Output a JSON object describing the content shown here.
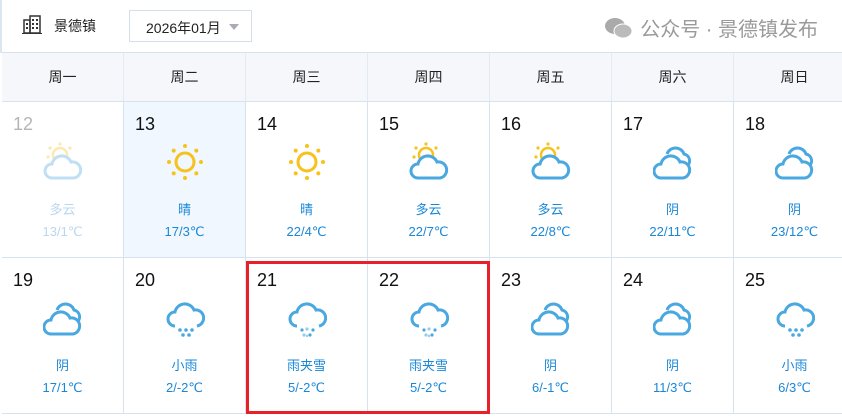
{
  "header": {
    "city": "景德镇",
    "month": "2026年01月"
  },
  "weekdays": [
    "周一",
    "周二",
    "周三",
    "周四",
    "周五",
    "周六",
    "周日"
  ],
  "rows": [
    [
      {
        "day": "12",
        "weather": "多云",
        "temp": "13/1℃",
        "icon": "partly-cloudy-icon",
        "past": true
      },
      {
        "day": "13",
        "weather": "晴",
        "temp": "17/3℃",
        "icon": "sun-icon",
        "today": true
      },
      {
        "day": "14",
        "weather": "晴",
        "temp": "22/4℃",
        "icon": "sun-icon"
      },
      {
        "day": "15",
        "weather": "多云",
        "temp": "22/7℃",
        "icon": "partly-cloudy-icon"
      },
      {
        "day": "16",
        "weather": "多云",
        "temp": "22/8℃",
        "icon": "partly-cloudy-icon"
      },
      {
        "day": "17",
        "weather": "阴",
        "temp": "22/11℃",
        "icon": "overcast-icon"
      },
      {
        "day": "18",
        "weather": "阴",
        "temp": "23/12℃",
        "icon": "overcast-icon"
      }
    ],
    [
      {
        "day": "19",
        "weather": "阴",
        "temp": "17/1℃",
        "icon": "overcast-icon"
      },
      {
        "day": "20",
        "weather": "小雨",
        "temp": "2/-2℃",
        "icon": "light-rain-icon"
      },
      {
        "day": "21",
        "weather": "雨夹雪",
        "temp": "5/-2℃",
        "icon": "sleet-icon"
      },
      {
        "day": "22",
        "weather": "雨夹雪",
        "temp": "5/-2℃",
        "icon": "sleet-icon"
      },
      {
        "day": "23",
        "weather": "阴",
        "temp": "6/-1℃",
        "icon": "overcast-icon"
      },
      {
        "day": "24",
        "weather": "阴",
        "temp": "11/3℃",
        "icon": "overcast-icon"
      },
      {
        "day": "25",
        "weather": "小雨",
        "temp": "6/3℃",
        "icon": "light-rain-icon"
      }
    ]
  ],
  "watermark": "公众号 · 景德镇发布",
  "colors": {
    "accent": "#1a87d6",
    "sun": "#f7c21b",
    "cloud": "#4aa8e0",
    "highlight": "#e8202a"
  }
}
